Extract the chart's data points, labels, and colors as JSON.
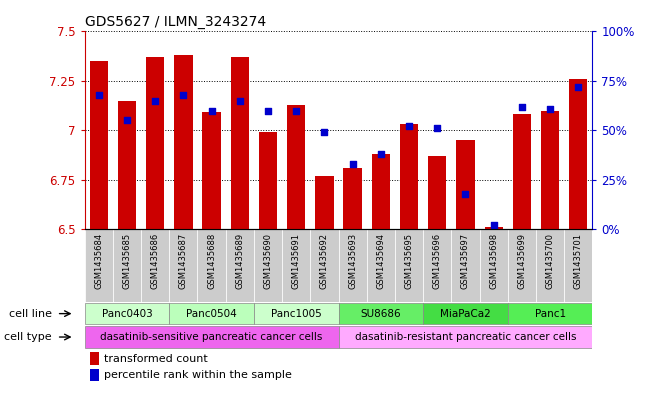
{
  "title": "GDS5627 / ILMN_3243274",
  "samples": [
    "GSM1435684",
    "GSM1435685",
    "GSM1435686",
    "GSM1435687",
    "GSM1435688",
    "GSM1435689",
    "GSM1435690",
    "GSM1435691",
    "GSM1435692",
    "GSM1435693",
    "GSM1435694",
    "GSM1435695",
    "GSM1435696",
    "GSM1435697",
    "GSM1435698",
    "GSM1435699",
    "GSM1435700",
    "GSM1435701"
  ],
  "bar_values": [
    7.35,
    7.15,
    7.37,
    7.38,
    7.09,
    7.37,
    6.99,
    7.13,
    6.77,
    6.81,
    6.88,
    7.03,
    6.87,
    6.95,
    6.51,
    7.08,
    7.1,
    7.26
  ],
  "percentile_values": [
    0.68,
    0.55,
    0.65,
    0.68,
    0.6,
    0.65,
    0.6,
    0.6,
    0.49,
    0.33,
    0.38,
    0.52,
    0.51,
    0.18,
    0.02,
    0.62,
    0.61,
    0.72
  ],
  "bar_color": "#cc0000",
  "percentile_color": "#0000cc",
  "ylim_left": [
    6.5,
    7.5
  ],
  "yticks_left": [
    6.5,
    6.75,
    7.0,
    7.25,
    7.5
  ],
  "ytick_labels_left": [
    "6.5",
    "6.75",
    "7",
    "7.25",
    "7.5"
  ],
  "yticks_right": [
    0.0,
    0.25,
    0.5,
    0.75,
    1.0
  ],
  "ytick_labels_right": [
    "0%",
    "25%",
    "50%",
    "75%",
    "100%"
  ],
  "cell_lines": [
    {
      "label": "Panc0403",
      "start": 0,
      "end": 2,
      "color": "#ccffcc"
    },
    {
      "label": "Panc0504",
      "start": 3,
      "end": 5,
      "color": "#bbffbb"
    },
    {
      "label": "Panc1005",
      "start": 6,
      "end": 8,
      "color": "#ccffcc"
    },
    {
      "label": "SU8686",
      "start": 9,
      "end": 11,
      "color": "#66ee66"
    },
    {
      "label": "MiaPaCa2",
      "start": 12,
      "end": 14,
      "color": "#44dd44"
    },
    {
      "label": "Panc1",
      "start": 15,
      "end": 17,
      "color": "#55ee55"
    }
  ],
  "cell_types": [
    {
      "label": "dasatinib-sensitive pancreatic cancer cells",
      "start": 0,
      "end": 8,
      "color": "#ee66ee"
    },
    {
      "label": "dasatinib-resistant pancreatic cancer cells",
      "start": 9,
      "end": 17,
      "color": "#ffaaff"
    }
  ],
  "legend_bar_label": "transformed count",
  "legend_pct_label": "percentile rank within the sample",
  "cell_line_label": "cell line",
  "cell_type_label": "cell type",
  "background_color": "#ffffff",
  "bar_width": 0.65,
  "figsize": [
    6.51,
    3.93
  ],
  "dpi": 100
}
